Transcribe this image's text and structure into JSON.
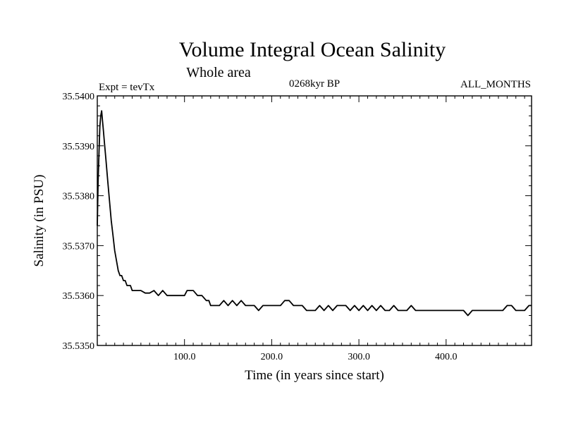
{
  "chart_data": {
    "type": "line",
    "title": "Volume Integral Ocean Salinity",
    "subtitle": "Whole area",
    "expt_label": "Expt = tevTx",
    "period_label": "0268kyr BP",
    "months_label": "ALL_MONTHS",
    "xlabel": "Time (in years since start)",
    "ylabel": "Salinity (in PSU)",
    "xlim": [
      0,
      498
    ],
    "ylim": [
      35.535,
      35.54
    ],
    "xticks": [
      100,
      200,
      300,
      400
    ],
    "xtick_labels": [
      "100.0",
      "200.0",
      "300.0",
      "400.0"
    ],
    "yticks": [
      35.535,
      35.536,
      35.537,
      35.538,
      35.539,
      35.54
    ],
    "ytick_labels": [
      "35.5350",
      "35.5360",
      "35.5370",
      "35.5380",
      "35.5390",
      "35.5400"
    ],
    "grid": false,
    "line_color": "#000000",
    "series": [
      {
        "x": [
          0,
          1,
          2,
          3,
          4,
          5,
          6,
          7,
          8,
          10,
          12,
          14,
          16,
          18,
          20,
          22,
          24,
          26,
          28,
          30,
          32,
          34,
          36,
          38,
          40,
          45,
          50,
          55,
          60,
          65,
          70,
          75,
          80,
          85,
          90,
          95,
          100,
          103,
          106,
          110,
          115,
          120,
          125,
          128,
          130,
          135,
          140,
          145,
          150,
          155,
          160,
          165,
          170,
          175,
          180,
          185,
          190,
          195,
          200,
          205,
          210,
          215,
          220,
          225,
          230,
          235,
          240,
          245,
          250,
          255,
          260,
          265,
          270,
          275,
          280,
          285,
          290,
          295,
          300,
          305,
          310,
          315,
          320,
          325,
          330,
          335,
          340,
          345,
          350,
          355,
          360,
          365,
          370,
          375,
          380,
          385,
          390,
          395,
          400,
          405,
          410,
          415,
          420,
          425,
          430,
          435,
          440,
          445,
          450,
          455,
          460,
          465,
          470,
          475,
          480,
          485,
          490,
          495,
          498
        ],
        "y": [
          35.5374,
          35.5383,
          35.5389,
          35.5394,
          35.5396,
          35.5397,
          35.5395,
          35.5393,
          35.5391,
          35.5387,
          35.5383,
          35.5379,
          35.5375,
          35.5372,
          35.5369,
          35.5367,
          35.5365,
          35.5364,
          35.5364,
          35.5363,
          35.5363,
          35.5362,
          35.5362,
          35.5362,
          35.5361,
          35.5361,
          35.5361,
          35.53605,
          35.53605,
          35.5361,
          35.536,
          35.5361,
          35.536,
          35.536,
          35.536,
          35.536,
          35.536,
          35.5361,
          35.5361,
          35.5361,
          35.536,
          35.536,
          35.5359,
          35.5359,
          35.5358,
          35.5358,
          35.5358,
          35.5359,
          35.5358,
          35.5359,
          35.5358,
          35.5359,
          35.5358,
          35.5358,
          35.5358,
          35.5357,
          35.5358,
          35.5358,
          35.5358,
          35.5358,
          35.5358,
          35.5359,
          35.5359,
          35.5358,
          35.5358,
          35.5358,
          35.5357,
          35.5357,
          35.5357,
          35.5358,
          35.5357,
          35.5358,
          35.5357,
          35.5358,
          35.5358,
          35.5358,
          35.5357,
          35.5358,
          35.5357,
          35.5358,
          35.5357,
          35.5358,
          35.5357,
          35.5358,
          35.5357,
          35.5357,
          35.5358,
          35.5357,
          35.5357,
          35.5357,
          35.5358,
          35.5357,
          35.5357,
          35.5357,
          35.5357,
          35.5357,
          35.5357,
          35.5357,
          35.5357,
          35.5357,
          35.5357,
          35.5357,
          35.5357,
          35.5356,
          35.5357,
          35.5357,
          35.5357,
          35.5357,
          35.5357,
          35.5357,
          35.5357,
          35.5357,
          35.5358,
          35.5358,
          35.5357,
          35.5357,
          35.5357,
          35.5358,
          35.5358
        ]
      }
    ]
  }
}
